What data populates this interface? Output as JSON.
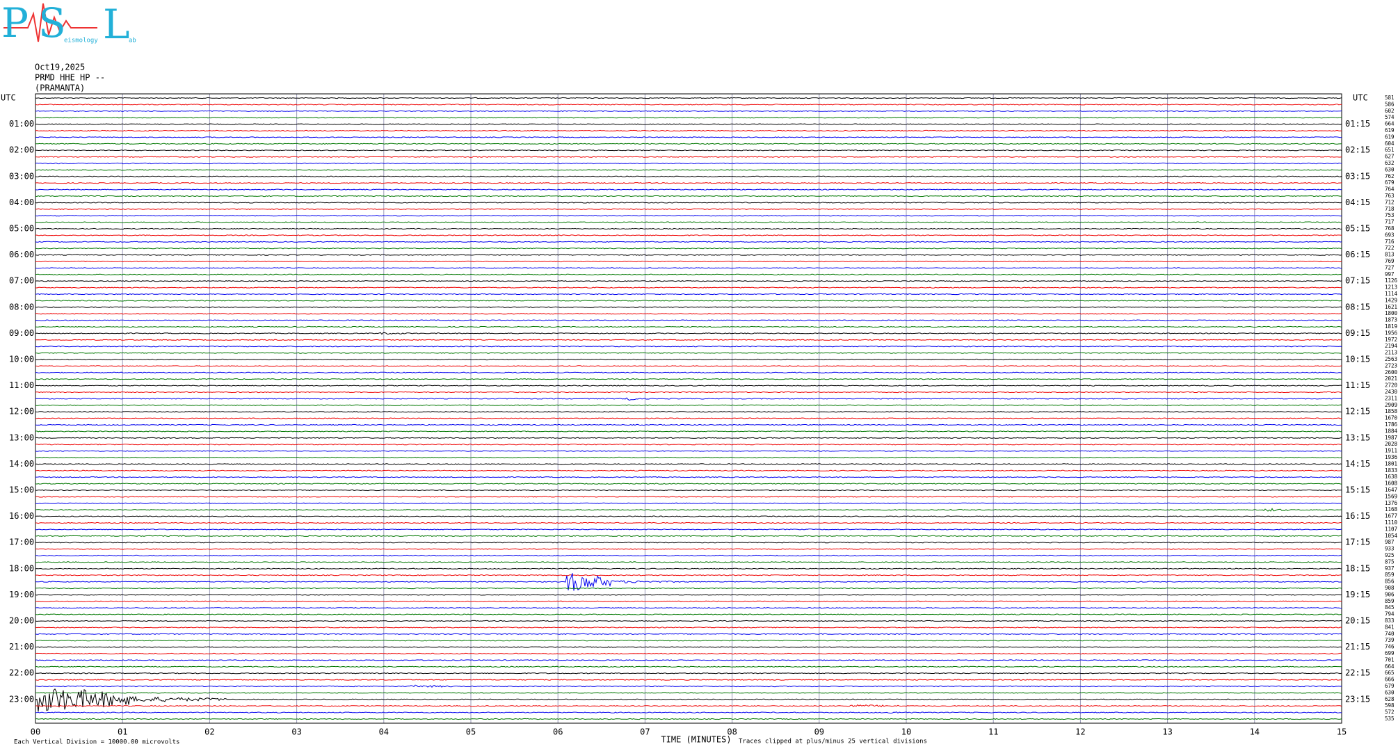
{
  "logo": {
    "letters": [
      "P",
      "S",
      "L"
    ],
    "small": [
      "eismology",
      "ab"
    ]
  },
  "header": {
    "date": "Oct19,2025",
    "station": "PRMD HHE HP --",
    "name": "(PRAMANTA)"
  },
  "plot": {
    "utc_left": "UTC",
    "utc_right": "UTC",
    "left_labels": [
      "01:00",
      "02:00",
      "03:00",
      "04:00",
      "05:00",
      "06:00",
      "07:00",
      "08:00",
      "09:00",
      "10:00",
      "11:00",
      "12:00",
      "13:00",
      "14:00",
      "15:00",
      "16:00",
      "17:00",
      "18:00",
      "19:00",
      "20:00",
      "21:00",
      "22:00",
      "23:00"
    ],
    "right_labels": [
      "01:15",
      "02:15",
      "03:15",
      "04:15",
      "05:15",
      "06:15",
      "07:15",
      "08:15",
      "09:15",
      "10:15",
      "11:15",
      "12:15",
      "13:15",
      "14:15",
      "15:15",
      "16:15",
      "17:15",
      "18:15",
      "19:15",
      "20:15",
      "21:15",
      "22:15",
      "23:15"
    ],
    "minute_labels": [
      "00",
      "01",
      "02",
      "03",
      "04",
      "05",
      "06",
      "07",
      "08",
      "09",
      "10",
      "11",
      "12",
      "13",
      "14",
      "15"
    ],
    "trace_values": [
      581,
      586,
      602,
      574,
      664,
      619,
      619,
      604,
      651,
      627,
      632,
      630,
      762,
      679,
      764,
      763,
      712,
      718,
      753,
      717,
      768,
      693,
      716,
      722,
      813,
      769,
      727,
      997,
      1126,
      1213,
      1114,
      1429,
      1621,
      1800,
      1873,
      1819,
      1956,
      1972,
      2194,
      2113,
      2563,
      2723,
      2600,
      2021,
      2720,
      2430,
      2311,
      2909,
      1858,
      1670,
      1786,
      1884,
      1987,
      2028,
      1911,
      1936,
      1801,
      1833,
      1638,
      1608,
      1647,
      1569,
      1376,
      1168,
      1677,
      1110,
      1107,
      1054,
      987,
      933,
      925,
      875,
      937,
      859,
      856,
      908,
      906,
      859,
      845,
      794,
      833,
      841,
      740,
      739,
      746,
      699,
      701,
      664,
      665,
      666,
      679,
      630,
      628,
      598,
      572,
      535
    ]
  },
  "footer": {
    "axis_title": "TIME (MINUTES)",
    "clip_note": "Traces clipped at plus/minus 25 vertical divisions",
    "division_note": "Each Vertical Division = 10000.00 microvolts"
  }
}
